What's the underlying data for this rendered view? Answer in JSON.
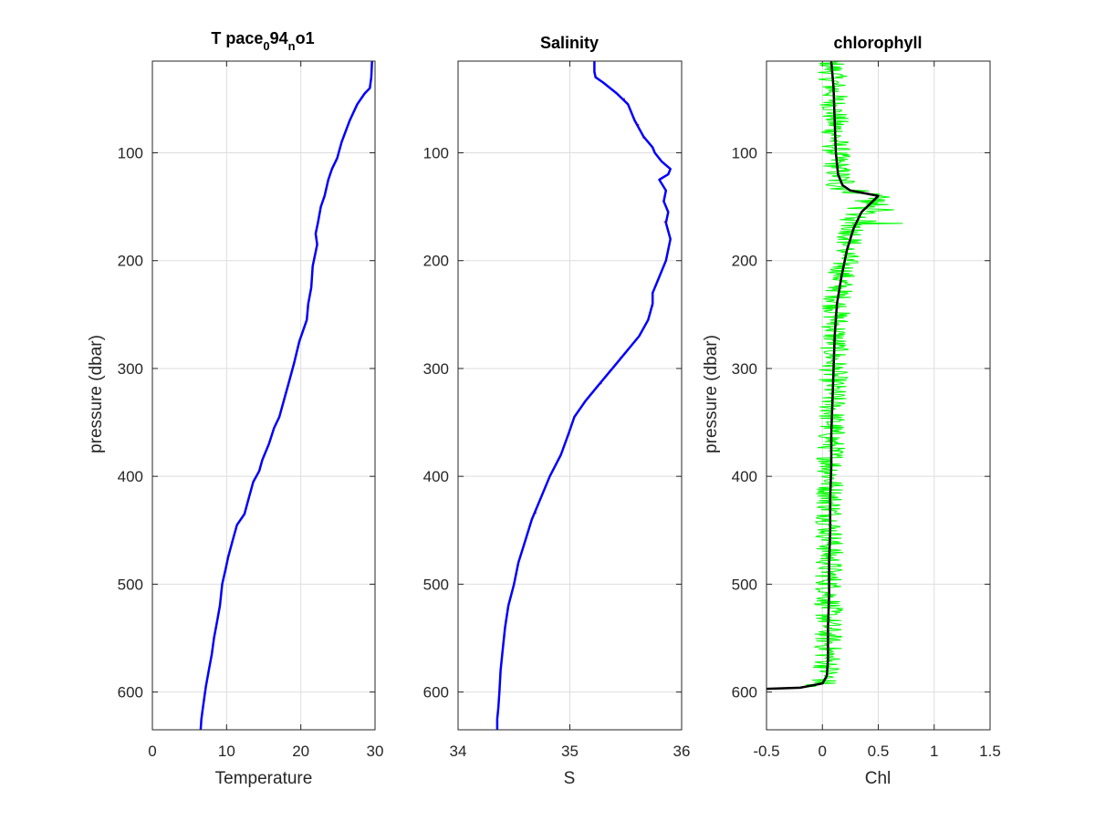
{
  "figure": {
    "background": "#ffffff"
  },
  "colors": {
    "profile": "#0000ff",
    "raw_error": "#ff0000",
    "chl_raw": "#00ff00",
    "chl_smooth": "#000000"
  },
  "chart_data": [
    {
      "type": "line",
      "title": "T pace",
      "title_sub1": "0",
      "title_mid": "94",
      "title_sub2": "n",
      "title_end": "o1",
      "xlabel": "Temperature",
      "ylabel": "pressure (dbar)",
      "xlim": [
        0,
        30
      ],
      "ylim": [
        635,
        15
      ],
      "y_reversed": true,
      "xticks": [
        "0",
        "10",
        "20",
        "30"
      ],
      "yticks": [
        "100",
        "200",
        "300",
        "400",
        "500",
        "600"
      ],
      "grid": true,
      "series": [
        {
          "color": "#0000ff",
          "x": [
            29.6,
            29.5,
            29.3,
            28.6,
            27.6,
            26.6,
            25.5,
            24.9,
            24.2,
            23.7,
            23.2,
            22.7,
            22.3,
            22.0,
            22.2,
            21.6,
            21.4,
            21.0,
            20.8,
            19.8,
            19.1,
            18.5,
            17.9,
            17.1,
            16.4,
            15.7,
            14.8,
            14.4,
            13.6,
            13.0,
            12.4,
            11.4,
            10.8,
            10.2,
            9.9,
            9.4,
            9.1,
            8.7,
            8.3,
            8.0,
            7.6,
            7.2,
            6.9,
            6.6,
            6.5
          ],
          "y": [
            15,
            30,
            40,
            45,
            55,
            70,
            90,
            105,
            115,
            125,
            140,
            150,
            165,
            175,
            185,
            205,
            225,
            240,
            255,
            275,
            295,
            310,
            325,
            345,
            355,
            370,
            385,
            395,
            405,
            420,
            435,
            445,
            460,
            475,
            485,
            500,
            520,
            535,
            550,
            565,
            580,
            595,
            610,
            625,
            635
          ]
        }
      ]
    },
    {
      "type": "line",
      "title": "Salinity",
      "xlabel": "S",
      "ylabel": "",
      "xlim": [
        34,
        36
      ],
      "ylim": [
        635,
        15
      ],
      "y_reversed": true,
      "xticks": [
        "34",
        "35",
        "36"
      ],
      "yticks": [
        "100",
        "200",
        "300",
        "400",
        "500",
        "600"
      ],
      "grid": true,
      "series": [
        {
          "color": "#0000ff",
          "x": [
            35.22,
            35.22,
            35.23,
            35.3,
            35.42,
            35.52,
            35.58,
            35.66,
            35.74,
            35.76,
            35.82,
            35.9,
            35.88,
            35.8,
            35.86,
            35.84,
            35.88,
            35.86,
            35.9,
            35.86,
            35.8,
            35.74,
            35.74,
            35.7,
            35.62,
            35.5,
            35.38,
            35.26,
            35.14,
            35.04,
            34.99,
            34.92,
            34.82,
            34.74,
            34.66,
            34.6,
            34.54,
            34.5,
            34.45,
            34.42,
            34.4,
            34.38,
            34.37,
            34.36,
            34.35,
            34.35
          ],
          "y": [
            15,
            25,
            30,
            35,
            45,
            55,
            70,
            85,
            95,
            100,
            108,
            115,
            120,
            125,
            135,
            145,
            155,
            165,
            180,
            200,
            215,
            230,
            240,
            255,
            270,
            285,
            300,
            315,
            330,
            345,
            360,
            380,
            400,
            420,
            440,
            460,
            480,
            500,
            520,
            540,
            560,
            580,
            600,
            615,
            625,
            635
          ]
        }
      ]
    },
    {
      "type": "line",
      "title": "chlorophyll",
      "xlabel": "Chl",
      "ylabel": "pressure (dbar)",
      "xlim": [
        -0.5,
        1.5
      ],
      "ylim": [
        635,
        15
      ],
      "y_reversed": true,
      "xticks": [
        "-0.5",
        "0",
        "0.5",
        "1",
        "1.5"
      ],
      "yticks": [
        "100",
        "200",
        "300",
        "400",
        "500",
        "600"
      ],
      "grid": true,
      "series": [
        {
          "name_hidden": "smoothed",
          "color": "#000000",
          "x": [
            0.08,
            0.1,
            0.11,
            0.12,
            0.14,
            0.18,
            0.25,
            0.4,
            0.5,
            0.45,
            0.35,
            0.28,
            0.22,
            0.17,
            0.13,
            0.11,
            0.1,
            0.09,
            0.08,
            0.08,
            0.07,
            0.07,
            0.06,
            0.06,
            0.05,
            0.05,
            0.04,
            0.0,
            -0.2,
            -0.5
          ],
          "y": [
            15,
            40,
            70,
            100,
            120,
            130,
            135,
            138,
            140,
            145,
            155,
            170,
            190,
            215,
            240,
            270,
            300,
            330,
            360,
            390,
            420,
            450,
            480,
            510,
            540,
            570,
            585,
            592,
            596,
            597
          ]
        }
      ]
    }
  ]
}
